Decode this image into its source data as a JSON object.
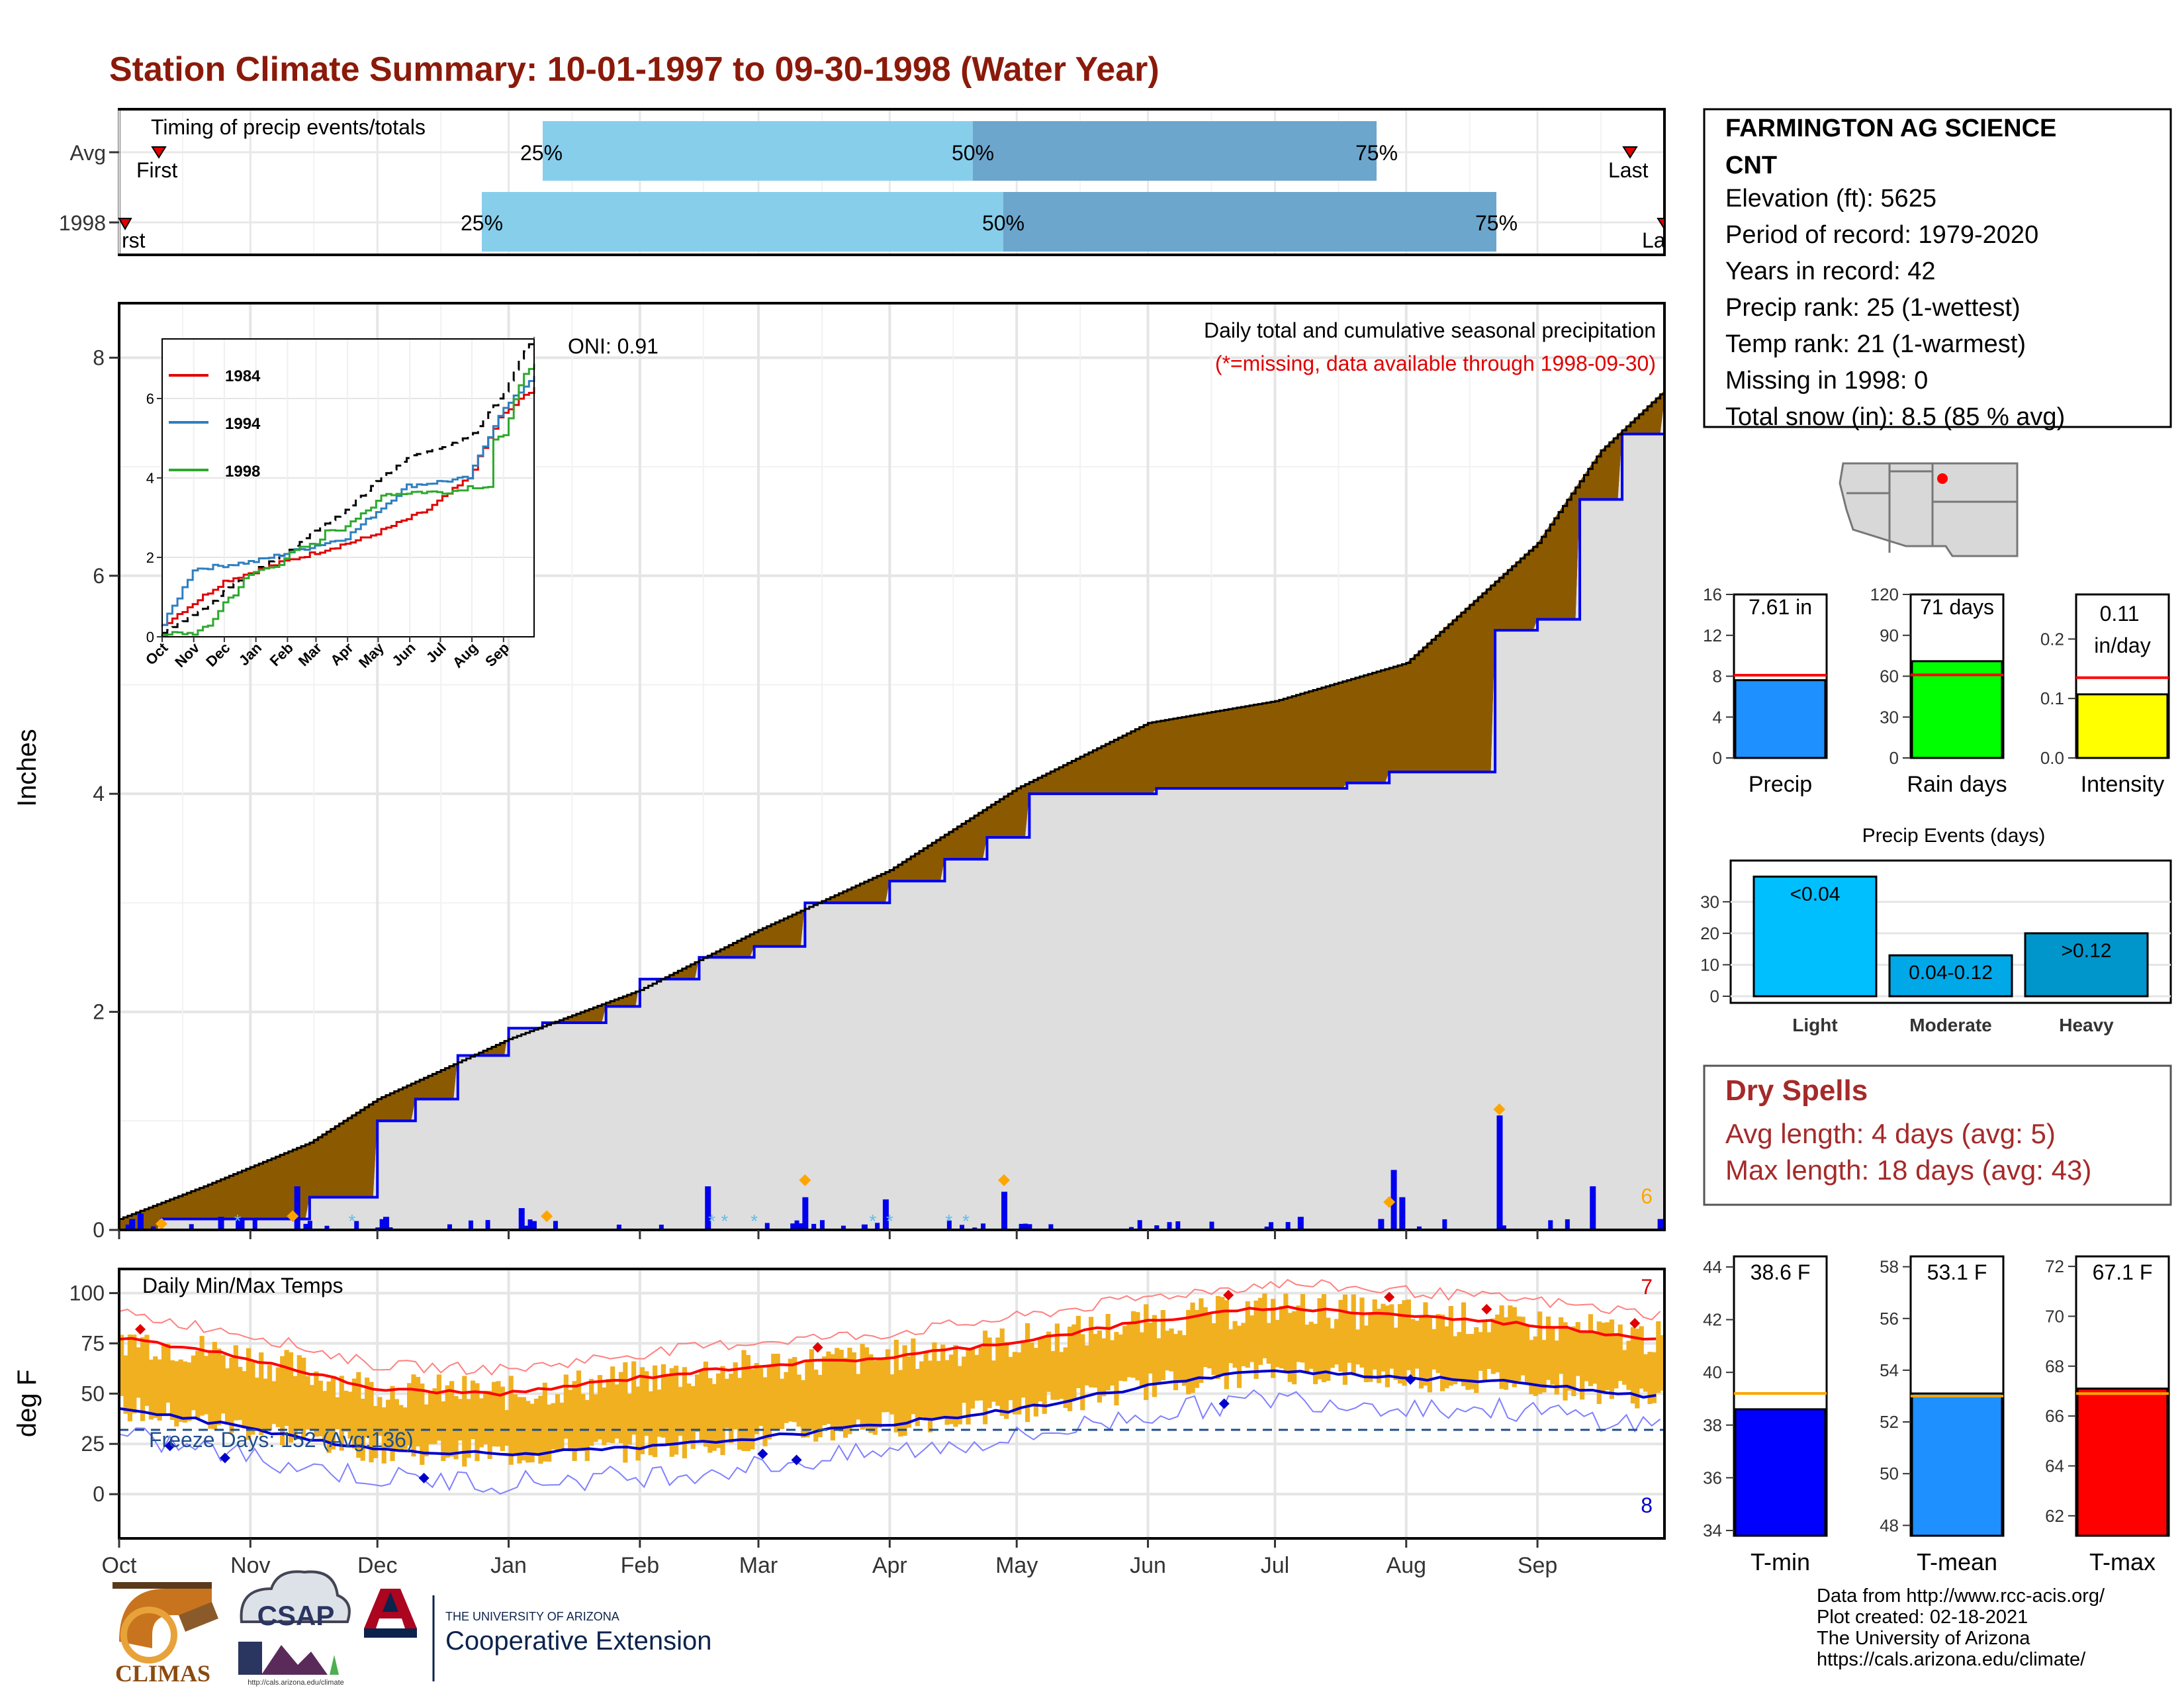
{
  "page": {
    "title": "Station Climate Summary: 10-01-1997 to 09-30-1998 (Water Year)",
    "colors": {
      "title": "#8B1A0A",
      "light_blue": "#87CEEB",
      "steel_blue": "#6CA6CD",
      "brown": "#8B5A00",
      "green": "#1A8C1A",
      "blue_line": "#0000EE",
      "orange": "#F0B020",
      "red": "#FF0000"
    }
  },
  "timing": {
    "title": "Timing of precip events/totals",
    "row_labels": [
      "Avg",
      "1998"
    ],
    "avg": {
      "first": "First",
      "last": "Last",
      "p25": "25%",
      "p50": "50%",
      "p75": "75%"
    },
    "y1998": {
      "first": "rst",
      "last": "La",
      "p25": "25%",
      "p50": "50%",
      "p75": "75%"
    }
  },
  "main": {
    "ylabel": "Inches",
    "y_ticks": [
      "0",
      "2",
      "4",
      "6",
      "8"
    ],
    "oni": "ONI: 0.91",
    "caption": "Daily total and cumulative seasonal precipitation",
    "caption2": "(*=missing, data available through 1998-09-30)",
    "corner_count": "6"
  },
  "inset": {
    "legend": [
      "1984",
      "1994",
      "1998"
    ],
    "y_ticks": [
      "0",
      "2",
      "4",
      "6"
    ],
    "x_ticks": [
      "Oct",
      "Nov",
      "Dec",
      "Jan",
      "Feb",
      "Mar",
      "Apr",
      "May",
      "Jun",
      "Jul",
      "Aug",
      "Sep"
    ]
  },
  "temps": {
    "title": "Daily Min/Max Temps",
    "ylabel": "deg F",
    "y_ticks": [
      "0",
      "25",
      "50",
      "75",
      "100"
    ],
    "freeze": "Freeze Days: 152 (Avg:136)",
    "count_hi": "7",
    "count_lo": "8"
  },
  "months": [
    "Oct",
    "Nov",
    "Dec",
    "Jan",
    "Feb",
    "Mar",
    "Apr",
    "May",
    "Jun",
    "Jul",
    "Aug",
    "Sep"
  ],
  "station": {
    "name1": "FARMINGTON AG SCIENCE",
    "name2": "CNT",
    "lines": [
      "Elevation (ft): 5625",
      "Period of record: 1979-2020",
      "Years in record: 42",
      "Precip rank: 25 (1-wettest)",
      "Temp rank: 21 (1-warmest)",
      "Missing in 1998: 0",
      "Total snow (in): 8.5 (85 % avg)"
    ]
  },
  "mini_bars": [
    {
      "label": "Precip",
      "value_text": "7.61 in",
      "ticks": [
        "0",
        "4",
        "8",
        "12",
        "16"
      ],
      "ymax": 16,
      "value": 7.61,
      "avg": 8.1,
      "color": "#1E90FF",
      "avg_color": "#FF0000"
    },
    {
      "label": "Rain days",
      "value_text": "71 days",
      "ticks": [
        "0",
        "30",
        "60",
        "90",
        "120"
      ],
      "ymax": 120,
      "value": 71,
      "avg": 61,
      "color": "#00FF00",
      "avg_color": "#FF0000"
    },
    {
      "label": "Intensity",
      "value_text": "0.11\nin/day",
      "ticks": [
        "0.0",
        "0.1",
        "0.2"
      ],
      "ymax": 0.275,
      "value": 0.107,
      "avg": 0.135,
      "color": "#FFFF00",
      "avg_color": "#FF0000"
    }
  ],
  "events": {
    "title": "Precip Events (days)",
    "ticks": [
      "0",
      "10",
      "20",
      "30"
    ],
    "ymax": 41,
    "bars": [
      {
        "label": "Light",
        "value": 38,
        "text": "<0.04",
        "color": "#00BFFF"
      },
      {
        "label": "Moderate",
        "value": 13,
        "text": "0.04-0.12",
        "color": "#00A8E8"
      },
      {
        "label": "Heavy",
        "value": 20,
        "text": ">0.12",
        "color": "#0096CC"
      }
    ]
  },
  "dry": {
    "title": "Dry Spells",
    "avg": "Avg length: 4 days (avg: 5)",
    "max": "Max length: 18 days (avg: 43)"
  },
  "temp_bars": [
    {
      "label": "T-min",
      "value_text": "38.6 F",
      "ticks": [
        "34",
        "36",
        "38",
        "40",
        "42",
        "44"
      ],
      "ymin": 33.8,
      "ymax": 44.4,
      "value": 38.6,
      "avg": 39.2,
      "color": "#0000FF"
    },
    {
      "label": "T-mean",
      "value_text": "53.1 F",
      "ticks": [
        "48",
        "50",
        "52",
        "54",
        "56",
        "58"
      ],
      "ymin": 47.6,
      "ymax": 58.4,
      "value": 53.1,
      "avg": 53.0,
      "color": "#1E90FF"
    },
    {
      "label": "T-max",
      "value_text": "67.1 F",
      "ticks": [
        "62",
        "64",
        "66",
        "68",
        "70",
        "72"
      ],
      "ymin": 61.2,
      "ymax": 72.4,
      "value": 67.1,
      "avg": 66.9,
      "color": "#FF0000"
    }
  ],
  "footer": {
    "credits": [
      "Data from http://www.rcc-acis.org/",
      "Plot created: 02-18-2021",
      "The University of Arizona",
      "https://cals.arizona.edu/climate/"
    ],
    "climas": "CLIMAS",
    "csap": "CSAP",
    "csap_url": "http://cals.arizona.edu/climate",
    "ua_small": "THE UNIVERSITY OF ARIZONA",
    "ua_big": "Cooperative Extension"
  },
  "chart_data": {
    "type": "area",
    "title": "Station Climate Summary: 10-01-1997 to 09-30-1998 (Water Year)",
    "ylabel": "Inches",
    "ylim": [
      0,
      8.5
    ],
    "x_labels": [
      "Oct",
      "Nov",
      "Dec",
      "Jan",
      "Feb",
      "Mar",
      "Apr",
      "May",
      "Jun",
      "Jul",
      "Aug",
      "Sep"
    ],
    "series": [
      {
        "name": "1998",
        "x": [
          0,
          10,
          31,
          45,
          61,
          70,
          80,
          92,
          100,
          115,
          123,
          137,
          150,
          162,
          175,
          182,
          195,
          205,
          215,
          232,
          245,
          260,
          275,
          290,
          300,
          320,
          325,
          335,
          345,
          355,
          365
        ],
        "y": [
          0,
          0.1,
          0.1,
          0.3,
          1.0,
          1.2,
          1.6,
          1.85,
          1.9,
          2.05,
          2.3,
          2.5,
          2.6,
          3.0,
          3.0,
          3.2,
          3.4,
          3.6,
          4.0,
          4.0,
          4.05,
          4.05,
          4.05,
          4.1,
          4.2,
          4.2,
          5.5,
          5.6,
          6.7,
          7.3,
          7.61
        ]
      },
      {
        "name": "Avg",
        "x": [
          0,
          20,
          45,
          61,
          92,
          123,
          151,
          182,
          212,
          243,
          273,
          304,
          335,
          350,
          365
        ],
        "y": [
          0.1,
          0.4,
          0.8,
          1.2,
          1.75,
          2.2,
          2.75,
          3.3,
          4.05,
          4.65,
          4.85,
          5.2,
          6.3,
          7.15,
          7.7
        ]
      }
    ],
    "daily_precip": [
      {
        "day": 3,
        "value": 0.1
      },
      {
        "day": 5,
        "value": 0.15
      },
      {
        "day": 24,
        "value": 0.12
      },
      {
        "day": 42,
        "value": 0.4
      },
      {
        "day": 63,
        "value": 0.12
      },
      {
        "day": 95,
        "value": 0.2
      },
      {
        "day": 139,
        "value": 0.4
      },
      {
        "day": 162,
        "value": 0.3
      },
      {
        "day": 176,
        "value": 0.05
      },
      {
        "day": 181,
        "value": 0.28
      },
      {
        "day": 209,
        "value": 0.35
      },
      {
        "day": 279,
        "value": 0.12
      },
      {
        "day": 298,
        "value": 0.1
      },
      {
        "day": 301,
        "value": 0.55
      },
      {
        "day": 303,
        "value": 0.3
      },
      {
        "day": 326,
        "value": 1.05
      },
      {
        "day": 348,
        "value": 0.4
      },
      {
        "day": 364,
        "value": 0.1
      }
    ],
    "temps": {
      "max_days": [
        0,
        30,
        61,
        92,
        123,
        151,
        182,
        212,
        243,
        273,
        304,
        335,
        364
      ],
      "max_vals": [
        78,
        68,
        52,
        50,
        58,
        64,
        68,
        76,
        86,
        93,
        89,
        84,
        77
      ],
      "min_days": [
        0,
        30,
        61,
        92,
        123,
        151,
        182,
        212,
        243,
        273,
        304,
        335,
        364
      ],
      "min_vals": [
        43,
        33,
        22,
        20,
        23,
        28,
        35,
        42,
        54,
        62,
        58,
        55,
        48
      ]
    },
    "grid": true
  }
}
